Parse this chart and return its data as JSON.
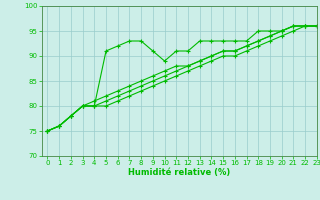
{
  "xlabel": "Humidité relative (%)",
  "xlim": [
    -0.5,
    23
  ],
  "ylim": [
    70,
    100
  ],
  "yticks": [
    70,
    75,
    80,
    85,
    90,
    95,
    100
  ],
  "xticks": [
    0,
    1,
    2,
    3,
    4,
    5,
    6,
    7,
    8,
    9,
    10,
    11,
    12,
    13,
    14,
    15,
    16,
    17,
    18,
    19,
    20,
    21,
    22,
    23
  ],
  "background_color": "#cceee8",
  "grid_color": "#99cccc",
  "line_color": "#00bb00",
  "series": [
    [
      75,
      76,
      78,
      80,
      80,
      91,
      92,
      93,
      93,
      91,
      89,
      91,
      91,
      93,
      93,
      93,
      93,
      93,
      95,
      95,
      95,
      96,
      96,
      96
    ],
    [
      75,
      76,
      78,
      80,
      81,
      82,
      83,
      84,
      85,
      86,
      87,
      88,
      88,
      89,
      90,
      91,
      91,
      92,
      93,
      94,
      95,
      96,
      96,
      96
    ],
    [
      75,
      76,
      78,
      80,
      80,
      81,
      82,
      83,
      84,
      85,
      86,
      87,
      88,
      89,
      90,
      91,
      91,
      92,
      93,
      94,
      95,
      96,
      96,
      96
    ],
    [
      75,
      76,
      78,
      80,
      80,
      80,
      81,
      82,
      83,
      84,
      85,
      86,
      87,
      88,
      89,
      90,
      90,
      91,
      92,
      93,
      94,
      95,
      96,
      96
    ]
  ]
}
